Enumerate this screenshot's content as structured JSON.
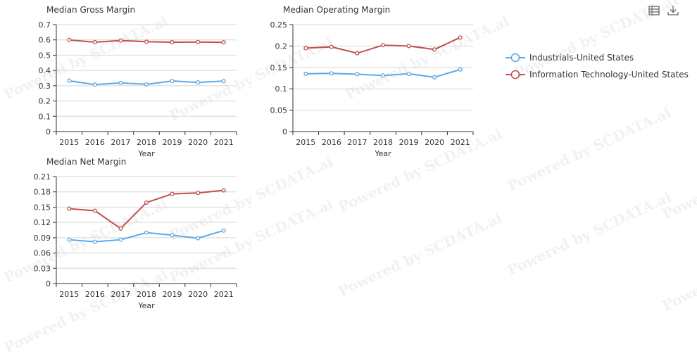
{
  "watermark_text": "Powered by SCDATA.ai",
  "toolbar": {
    "data_view_icon": "table-view-icon",
    "download_icon": "download-icon"
  },
  "legend": {
    "items": [
      {
        "label": "Industrials-United States",
        "color": "#5aa9ea"
      },
      {
        "label": "Information Technology-United States",
        "color": "#c0504d"
      }
    ]
  },
  "chart_data": [
    {
      "type": "line",
      "title": "Median Gross Margin",
      "xlabel": "Year",
      "ylabel": "",
      "categories": [
        "2015",
        "2016",
        "2017",
        "2018",
        "2019",
        "2020",
        "2021"
      ],
      "yticks": [
        "0",
        "0.1",
        "0.2",
        "0.3",
        "0.4",
        "0.5",
        "0.6",
        "0.7"
      ],
      "ylim": [
        0,
        0.7
      ],
      "series": [
        {
          "name": "Industrials-United States",
          "color": "#5aa9ea",
          "values": [
            0.333,
            0.307,
            0.318,
            0.309,
            0.331,
            0.322,
            0.33
          ]
        },
        {
          "name": "Information Technology-United States",
          "color": "#c0504d",
          "values": [
            0.6,
            0.585,
            0.596,
            0.588,
            0.585,
            0.586,
            0.584
          ]
        }
      ]
    },
    {
      "type": "line",
      "title": "Median Operating Margin",
      "xlabel": "Year",
      "ylabel": "",
      "categories": [
        "2015",
        "2016",
        "2017",
        "2018",
        "2019",
        "2020",
        "2021"
      ],
      "yticks": [
        "0",
        "0.05",
        "0.1",
        "0.15",
        "0.2",
        "0.25"
      ],
      "ylim": [
        0,
        0.25
      ],
      "series": [
        {
          "name": "Industrials-United States",
          "color": "#5aa9ea",
          "values": [
            0.135,
            0.136,
            0.134,
            0.131,
            0.135,
            0.127,
            0.145
          ]
        },
        {
          "name": "Information Technology-United States",
          "color": "#c0504d",
          "values": [
            0.195,
            0.198,
            0.183,
            0.202,
            0.2,
            0.192,
            0.22
          ]
        }
      ]
    },
    {
      "type": "line",
      "title": "Median Net Margin",
      "xlabel": "Year",
      "ylabel": "",
      "categories": [
        "2015",
        "2016",
        "2017",
        "2018",
        "2019",
        "2020",
        "2021"
      ],
      "yticks": [
        "0",
        "0.03",
        "0.06",
        "0.09",
        "0.12",
        "0.15",
        "0.18",
        "0.21"
      ],
      "ylim": [
        0,
        0.21
      ],
      "series": [
        {
          "name": "Industrials-United States",
          "color": "#5aa9ea",
          "values": [
            0.086,
            0.082,
            0.086,
            0.1,
            0.095,
            0.089,
            0.104
          ]
        },
        {
          "name": "Information Technology-United States",
          "color": "#c0504d",
          "values": [
            0.147,
            0.143,
            0.108,
            0.159,
            0.176,
            0.178,
            0.183
          ]
        }
      ]
    }
  ]
}
